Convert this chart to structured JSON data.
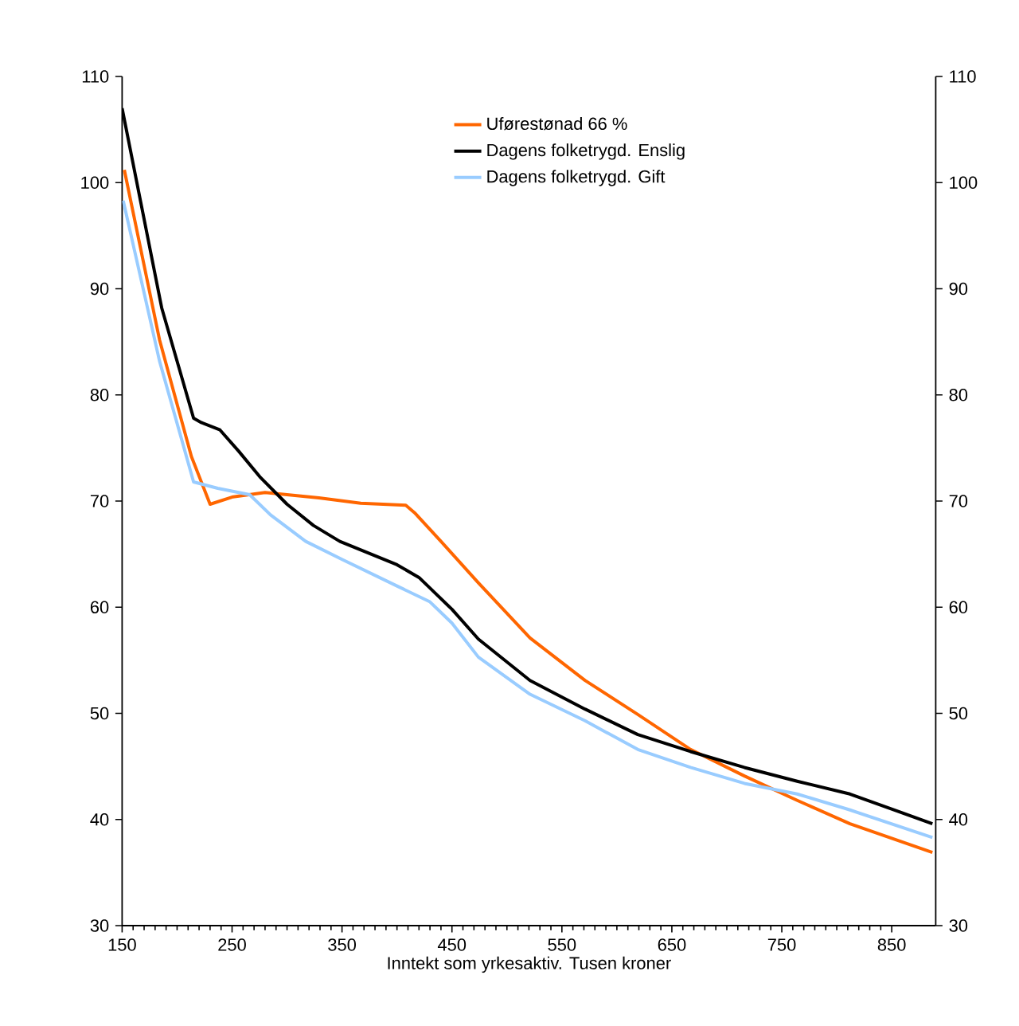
{
  "chart_data": {
    "type": "line",
    "xlabel": "Inntekt som yrkesaktiv. Tusen kroner",
    "xlim": [
      150,
      890
    ],
    "xticks": [
      150,
      250,
      350,
      450,
      550,
      650,
      750,
      850
    ],
    "ylim": [
      30,
      110
    ],
    "yticks": [
      30,
      40,
      50,
      60,
      70,
      80,
      90,
      100,
      110
    ],
    "y2lim": [
      30,
      110
    ],
    "y2ticks": [
      30,
      40,
      50,
      60,
      70,
      80,
      90,
      100,
      110
    ],
    "legend": "top right",
    "series": [
      {
        "name": "Uførestønad 66 %",
        "color": "#ff6600",
        "x": [
          152,
          184,
          213,
          230,
          251,
          280,
          329,
          367,
          408,
          416,
          440,
          474,
          521,
          571,
          619,
          667,
          716,
          764,
          812,
          887
        ],
        "values": [
          101.2,
          85.2,
          74.2,
          69.7,
          70.4,
          70.8,
          70.3,
          69.8,
          69.6,
          68.9,
          66.2,
          62.3,
          57.1,
          53.1,
          49.9,
          46.6,
          44.1,
          41.8,
          39.6,
          36.9
        ]
      },
      {
        "name": "Dagens folketrygd. Enslig",
        "color": "#000000",
        "x": [
          150,
          186,
          215,
          222,
          239,
          256,
          276,
          300,
          324,
          348,
          400,
          420,
          450,
          474,
          521,
          571,
          619,
          667,
          716,
          764,
          812,
          887
        ],
        "values": [
          107,
          88.2,
          77.8,
          77.4,
          76.7,
          74.7,
          72.2,
          69.7,
          67.7,
          66.2,
          64,
          62.8,
          59.8,
          57,
          53.1,
          50.4,
          48,
          46.4,
          44.9,
          43.6,
          42.4,
          39.6
        ]
      },
      {
        "name": "Dagens folketrygd. Gift",
        "color": "#99ccff",
        "x": [
          151,
          184,
          215,
          237,
          266,
          285,
          317,
          350,
          400,
          430,
          450,
          474,
          521,
          571,
          619,
          667,
          716,
          764,
          812,
          887
        ],
        "values": [
          98.3,
          83.2,
          71.8,
          71.2,
          70.6,
          68.7,
          66.2,
          64.5,
          62,
          60.5,
          58.5,
          55.3,
          51.8,
          49.3,
          46.6,
          44.9,
          43.4,
          42.4,
          40.9,
          38.3
        ]
      }
    ]
  }
}
